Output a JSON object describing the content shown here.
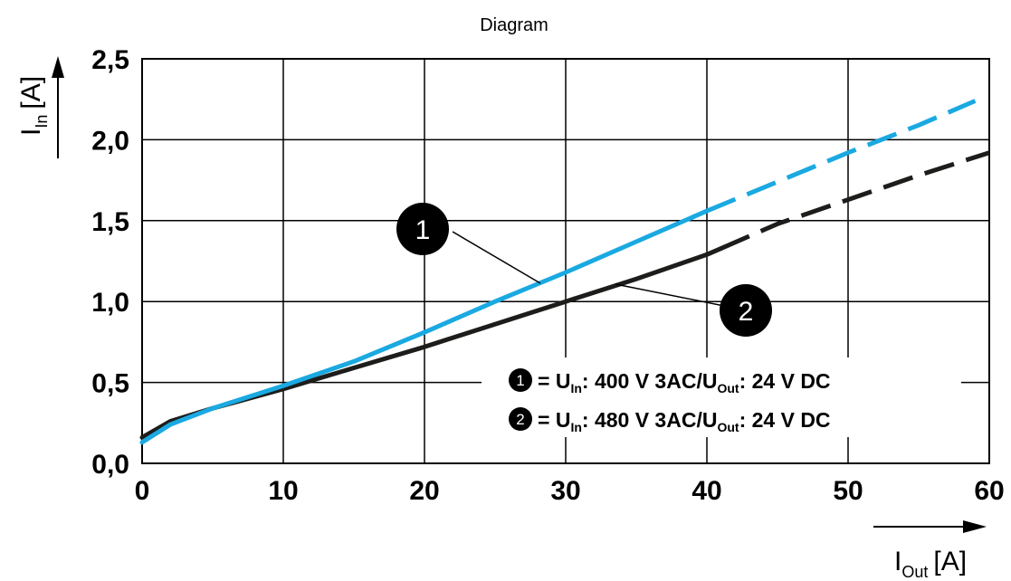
{
  "chart_data": {
    "type": "line",
    "title": "Diagram",
    "xlabel": {
      "main": "I",
      "sub": "Out",
      "unit": "[A]"
    },
    "ylabel": {
      "main": "I",
      "sub": "In",
      "unit": "[A]"
    },
    "xlim": [
      0,
      60
    ],
    "ylim": [
      0,
      2.5
    ],
    "x_ticks": [
      "0",
      "10",
      "20",
      "30",
      "40",
      "50",
      "60"
    ],
    "y_ticks": [
      "0,0",
      "0,5",
      "1,0",
      "1,5",
      "2,0",
      "2,5"
    ],
    "grid": true,
    "series": [
      {
        "marker": "1",
        "color": "#1aa9e1",
        "solid_until_x": 40,
        "points": [
          [
            0,
            0.13
          ],
          [
            2,
            0.24
          ],
          [
            5,
            0.34
          ],
          [
            10,
            0.48
          ],
          [
            15,
            0.63
          ],
          [
            20,
            0.81
          ],
          [
            25,
            1.0
          ],
          [
            30,
            1.18
          ],
          [
            35,
            1.37
          ],
          [
            40,
            1.56
          ],
          [
            45,
            1.74
          ],
          [
            50,
            1.92
          ],
          [
            55,
            2.09
          ],
          [
            59,
            2.24
          ]
        ]
      },
      {
        "marker": "2",
        "color": "#1d1d1b",
        "solid_until_x": 41,
        "points": [
          [
            0,
            0.16
          ],
          [
            2,
            0.26
          ],
          [
            5,
            0.34
          ],
          [
            10,
            0.46
          ],
          [
            15,
            0.59
          ],
          [
            20,
            0.72
          ],
          [
            25,
            0.86
          ],
          [
            30,
            1.0
          ],
          [
            35,
            1.14
          ],
          [
            40,
            1.29
          ],
          [
            45,
            1.48
          ],
          [
            50,
            1.63
          ],
          [
            55,
            1.78
          ],
          [
            60,
            1.92
          ]
        ]
      }
    ],
    "legend": [
      {
        "num": "1",
        "prefix": "= U",
        "sub1": "In",
        "mid": ": 400 V 3AC/U",
        "sub2": "Out",
        "suffix": ": 24 V DC"
      },
      {
        "num": "2",
        "prefix": "= U",
        "sub1": "In",
        "mid": ": 480 V 3AC/U",
        "sub2": "Out",
        "suffix": ": 24 V DC"
      }
    ]
  }
}
